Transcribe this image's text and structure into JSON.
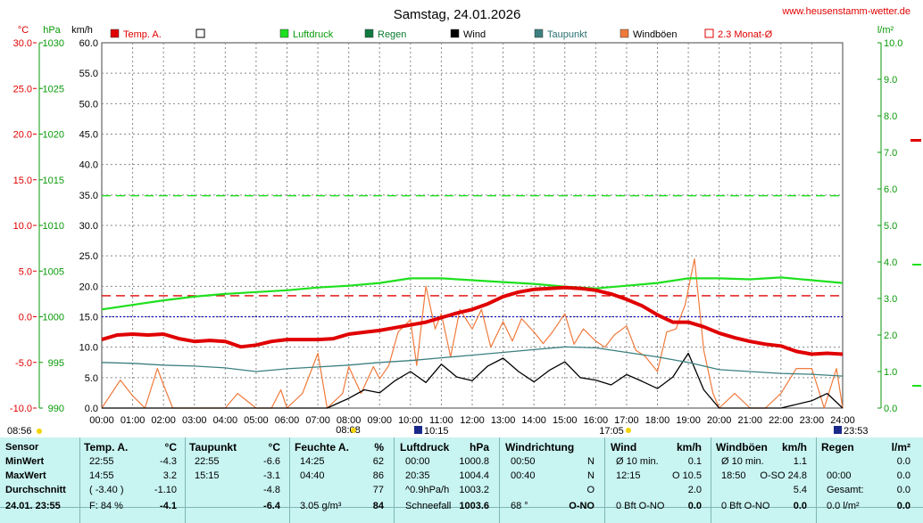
{
  "title": "Samstag, 24.01.2026",
  "website": "www.heusenstamm-wetter.de",
  "axes": {
    "temp_unit": "°C",
    "pressure_unit": "hPa",
    "wind_unit": "km/h",
    "rain_unit": "l/m²",
    "temp_ticks": [
      "30.0",
      "25.0",
      "20.0",
      "15.0",
      "10.0",
      "5.0",
      "0.0",
      "-5.0",
      "-10.0"
    ],
    "pressure_ticks": [
      "1030",
      "1025",
      "1020",
      "1015",
      "1010",
      "1005",
      "1000",
      "995",
      "990"
    ],
    "wind_ticks": [
      "60.0",
      "55.0",
      "50.0",
      "45.0",
      "40.0",
      "35.0",
      "30.0",
      "25.0",
      "20.0",
      "15.0",
      "10.0",
      "5.0",
      "0.0"
    ],
    "rain_ticks": [
      "10.0",
      "9.0",
      "8.0",
      "7.0",
      "6.0",
      "5.0",
      "4.0",
      "3.0",
      "2.0",
      "1.0",
      "0.0"
    ],
    "time_ticks": [
      "00:00",
      "01:00",
      "02:00",
      "03:00",
      "04:00",
      "05:00",
      "06:00",
      "07:00",
      "08:00",
      "09:00",
      "10:00",
      "11:00",
      "12:00",
      "13:00",
      "14:00",
      "15:00",
      "16:00",
      "17:00",
      "18:00",
      "19:00",
      "20:00",
      "21:00",
      "22:00",
      "23:00",
      "24:00"
    ]
  },
  "legend": [
    {
      "label": "Temp. A.",
      "color": "#e00000",
      "style": "fill"
    },
    {
      "label": "",
      "color": "#ffffff",
      "style": "box"
    },
    {
      "label": "Luftdruck",
      "color": "#1ee01e",
      "style": "fill"
    },
    {
      "label": "Regen",
      "color": "#107a40",
      "style": "fill"
    },
    {
      "label": "Wind",
      "color": "#000000",
      "style": "fill"
    },
    {
      "label": "Taupunkt",
      "color": "#3c7f80",
      "style": "fill"
    },
    {
      "label": "Windböen",
      "color": "#f07a3c",
      "style": "fill"
    },
    {
      "label": "2.3 Monat-Ø",
      "color": "#e00000",
      "style": "box"
    }
  ],
  "sun": {
    "sunrise": "08:08",
    "sunset": "17:05",
    "moonrise": "10:15",
    "moonset": "23:53",
    "dawn": "08:56"
  },
  "chart_data": {
    "type": "line",
    "x_range": [
      "00:00",
      "24:00"
    ],
    "temp_ylim": [
      -10,
      30
    ],
    "pressure_ylim": [
      990,
      1030
    ],
    "wind_ylim": [
      0,
      60
    ],
    "rain_ylim": [
      0,
      10
    ],
    "reference_lines": [
      {
        "name": "2.3 Monat-Ø",
        "axis": "temp",
        "value": 2.3,
        "color": "#e00000"
      },
      {
        "axis": "temp",
        "value": 0.0,
        "color": "#1010c0"
      },
      {
        "axis": "pressure",
        "value": 1013.25,
        "color": "#1ee01e"
      }
    ],
    "series": [
      {
        "name": "Temp. A.",
        "axis": "temp",
        "color": "#e00000",
        "x": [
          0,
          0.5,
          1,
          1.5,
          2,
          2.5,
          3,
          3.5,
          4,
          4.5,
          5,
          5.5,
          6,
          6.5,
          7,
          7.5,
          8,
          8.5,
          9,
          9.5,
          10,
          10.5,
          11,
          11.5,
          12,
          12.5,
          13,
          13.5,
          14,
          14.5,
          15,
          15.5,
          16,
          16.5,
          17,
          17.5,
          18,
          18.5,
          19,
          19.5,
          20,
          20.5,
          21,
          21.5,
          22,
          22.5,
          23,
          23.5,
          24
        ],
        "y": [
          -2.5,
          -2.0,
          -1.9,
          -2.0,
          -1.9,
          -2.4,
          -2.7,
          -2.6,
          -2.7,
          -3.3,
          -3.1,
          -2.7,
          -2.5,
          -2.5,
          -2.5,
          -2.4,
          -1.9,
          -1.7,
          -1.5,
          -1.2,
          -0.9,
          -0.6,
          -0.1,
          0.4,
          0.8,
          1.4,
          2.2,
          2.7,
          3.0,
          3.1,
          3.2,
          3.1,
          2.9,
          2.5,
          1.9,
          1.2,
          0.2,
          -0.6,
          -0.6,
          -1.1,
          -1.8,
          -2.3,
          -2.7,
          -3.0,
          -3.2,
          -3.8,
          -4.1,
          -4.0,
          -4.1
        ]
      },
      {
        "name": "Taupunkt",
        "axis": "temp",
        "color": "#3c7f80",
        "x": [
          0,
          1,
          2,
          3,
          4,
          5,
          6,
          7,
          8,
          9,
          10,
          11,
          12,
          13,
          14,
          15,
          16,
          17,
          18,
          19,
          20,
          21,
          22,
          23,
          24
        ],
        "y": [
          -5.0,
          -5.1,
          -5.3,
          -5.4,
          -5.6,
          -6.0,
          -5.7,
          -5.5,
          -5.3,
          -5.0,
          -4.8,
          -4.5,
          -4.2,
          -3.9,
          -3.6,
          -3.3,
          -3.4,
          -3.9,
          -4.4,
          -5.0,
          -5.8,
          -6.0,
          -6.2,
          -6.3,
          -6.5
        ]
      },
      {
        "name": "Luftdruck",
        "axis": "pressure",
        "color": "#1ee01e",
        "x": [
          0,
          1,
          2,
          3,
          4,
          5,
          6,
          7,
          8,
          9,
          10,
          11,
          12,
          13,
          14,
          15,
          16,
          17,
          18,
          19,
          20,
          21,
          22,
          23,
          24
        ],
        "y": [
          1000.8,
          1001.3,
          1001.8,
          1002.2,
          1002.5,
          1002.7,
          1002.9,
          1003.2,
          1003.4,
          1003.7,
          1004.2,
          1004.2,
          1004.0,
          1003.8,
          1003.6,
          1003.3,
          1003.1,
          1003.4,
          1003.7,
          1004.2,
          1004.2,
          1004.1,
          1004.3,
          1004.0,
          1003.7
        ]
      },
      {
        "name": "Wind",
        "axis": "wind",
        "color": "#000000",
        "x": [
          0,
          7.3,
          8,
          8.5,
          9,
          9.5,
          10,
          10.5,
          11,
          11.5,
          12,
          12.5,
          13,
          13.5,
          14,
          14.5,
          15,
          15.5,
          16,
          16.5,
          17,
          17.5,
          18,
          18.5,
          19,
          19.5,
          20,
          21,
          22,
          23,
          23.5,
          24
        ],
        "y": [
          0,
          0,
          1.6,
          3.0,
          2.5,
          4.5,
          6.0,
          4.2,
          7.2,
          5.1,
          4.5,
          6.9,
          8.2,
          6.0,
          4.3,
          6.2,
          7.6,
          5.0,
          4.6,
          3.8,
          5.5,
          4.4,
          3.2,
          5.1,
          9.0,
          3.0,
          0,
          0,
          0,
          1.2,
          2.4,
          0
        ]
      },
      {
        "name": "Windböen",
        "axis": "wind",
        "color": "#f07a3c",
        "x": [
          0,
          0.6,
          1,
          1.4,
          1.8,
          2,
          2.3,
          2.6,
          3,
          4,
          4.4,
          5,
          5.5,
          5.8,
          6,
          6.5,
          7,
          7.3,
          7.8,
          8,
          8.4,
          8.8,
          9,
          9.3,
          9.6,
          10,
          10.2,
          10.5,
          10.8,
          11,
          11.3,
          11.6,
          12,
          12.3,
          12.6,
          13,
          13.3,
          13.6,
          14,
          14.3,
          14.6,
          15,
          15.3,
          15.6,
          16,
          16.3,
          16.6,
          17,
          17.3,
          17.6,
          18,
          18.3,
          18.6,
          18.9,
          19.2,
          19.5,
          19.8,
          20,
          20.5,
          21,
          21.5,
          22,
          22.5,
          23,
          23.4,
          23.8,
          24
        ],
        "y": [
          0,
          4.6,
          2.0,
          0,
          6.5,
          3.8,
          0,
          0,
          0,
          0,
          2.4,
          0,
          0,
          3.0,
          0,
          2.4,
          9.0,
          0,
          2.4,
          6.8,
          2.4,
          6.8,
          4.8,
          7.0,
          12.5,
          14.5,
          7.0,
          20.0,
          13.0,
          15.5,
          8.4,
          16.2,
          13.0,
          16.2,
          10.0,
          14.2,
          11.0,
          14.7,
          12.5,
          10.6,
          12.5,
          15.5,
          10.5,
          13.0,
          11.0,
          10.0,
          12.0,
          13.5,
          9.5,
          8.5,
          6.0,
          12.5,
          13.0,
          17.0,
          24.5,
          9.5,
          2.4,
          0,
          2.4,
          0,
          0,
          2.4,
          6.5,
          6.5,
          0,
          6.5,
          0
        ]
      }
    ]
  },
  "stats": {
    "row_labels": [
      "Sensor",
      "MinWert",
      "MaxWert",
      "Durchschnitt",
      "24.01. 23:55"
    ],
    "temp": {
      "h1": "Temp. A.",
      "h2": "°C",
      "rows": [
        [
          "22:55",
          "-4.3"
        ],
        [
          "14:55",
          "3.2"
        ],
        [
          "( -3.40 )",
          "-1.10"
        ],
        [
          "F: 84 %",
          "-4.1"
        ]
      ]
    },
    "dew": {
      "h1": "Taupunkt",
      "h2": "°C",
      "rows": [
        [
          "22:55",
          "-6.6"
        ],
        [
          "15:15",
          "-3.1"
        ],
        [
          "",
          "-4.8"
        ],
        [
          "",
          "-6.4"
        ]
      ]
    },
    "hum": {
      "h1": "Feuchte A.",
      "h2": "%",
      "rows": [
        [
          "14:25",
          "62"
        ],
        [
          "04:40",
          "86"
        ],
        [
          "",
          "77"
        ],
        [
          "3.05 g/m³",
          "84"
        ]
      ]
    },
    "press": {
      "h1": "Luftdruck",
      "h2": "hPa",
      "rows": [
        [
          "00:00",
          "1000.8"
        ],
        [
          "20:35",
          "1004.4"
        ],
        [
          "^0.9hPa/h",
          "1003.2"
        ],
        [
          "Schneefall",
          "1003.6"
        ]
      ]
    },
    "wdir": {
      "h1": "Windrichtung",
      "h2": "",
      "rows": [
        [
          "00:50",
          "N"
        ],
        [
          "00:40",
          "N"
        ],
        [
          "",
          "O"
        ],
        [
          "68 °",
          "O-NO"
        ]
      ]
    },
    "wind": {
      "h1": "Wind",
      "h2": "km/h",
      "rows": [
        [
          "Ø 10 min.",
          "0.1"
        ],
        [
          "12:15",
          "O 10.5"
        ],
        [
          "",
          "2.0"
        ],
        [
          "0 Bft O-NO",
          "0.0"
        ]
      ]
    },
    "gust": {
      "h1": "Windböen",
      "h2": "km/h",
      "rows": [
        [
          "Ø 10 min.",
          "1.1"
        ],
        [
          "18:50",
          "O-SO 24.8"
        ],
        [
          "",
          "5.4"
        ],
        [
          "0 Bft O-NO",
          "0.0"
        ]
      ]
    },
    "rain": {
      "h1": "Regen",
      "h2": "l/m²",
      "rows": [
        [
          "",
          "0.0"
        ],
        [
          "00:00",
          "0.0"
        ],
        [
          "Gesamt:",
          "0.0"
        ],
        [
          "0.0 l/m²",
          "0.0"
        ]
      ]
    }
  }
}
